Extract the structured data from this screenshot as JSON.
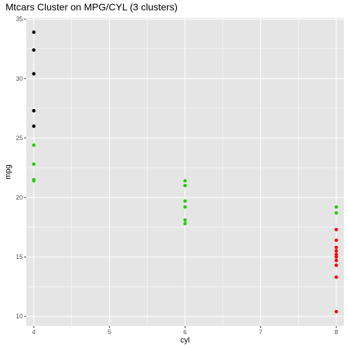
{
  "chart_data": {
    "type": "scatter",
    "title": "Mtcars Cluster on MPG/CYL (3 clusters)",
    "xlabel": "cyl",
    "ylabel": "mpg",
    "xlim": [
      3.9,
      8.1
    ],
    "ylim": [
      9.2,
      35.1
    ],
    "x_ticks": [
      4,
      5,
      6,
      7,
      8
    ],
    "y_ticks": [
      10,
      15,
      20,
      25,
      30,
      35
    ],
    "grid": true,
    "legend": "none",
    "colors": {
      "panel": "#e5e5e5",
      "grid": "#ffffff",
      "cluster_1": "#000000",
      "cluster_2": "#22cc00",
      "cluster_3": "#ff0000"
    },
    "series": [
      {
        "color": "#000000",
        "points": [
          [
            4,
            33.9
          ],
          [
            4,
            32.4
          ],
          [
            4,
            30.4
          ],
          [
            4,
            27.3
          ],
          [
            4,
            26.0
          ]
        ]
      },
      {
        "color": "#22cc00",
        "points": [
          [
            4,
            24.4
          ],
          [
            4,
            22.8
          ],
          [
            4,
            21.5
          ],
          [
            4,
            21.4
          ],
          [
            6,
            21.4
          ],
          [
            6,
            21.0
          ],
          [
            6,
            19.7
          ],
          [
            6,
            19.2
          ],
          [
            6,
            18.1
          ],
          [
            6,
            17.8
          ],
          [
            8,
            19.2
          ],
          [
            8,
            18.7
          ]
        ]
      },
      {
        "color": "#ff0000",
        "points": [
          [
            8,
            17.3
          ],
          [
            8,
            16.4
          ],
          [
            8,
            15.8
          ],
          [
            8,
            15.5
          ],
          [
            8,
            15.2
          ],
          [
            8,
            15.0
          ],
          [
            8,
            14.7
          ],
          [
            8,
            14.3
          ],
          [
            8,
            13.3
          ],
          [
            8,
            10.4
          ]
        ]
      }
    ]
  }
}
